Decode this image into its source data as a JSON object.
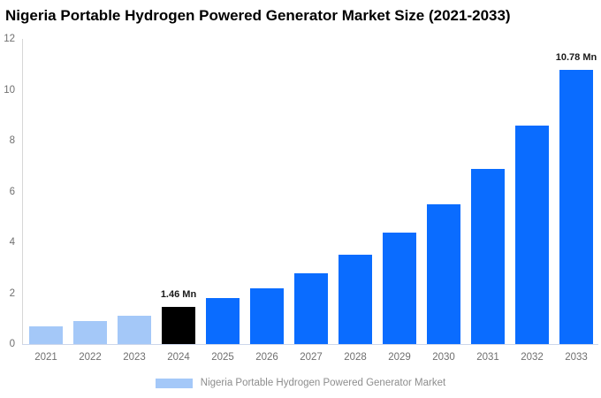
{
  "chart_data": {
    "type": "bar",
    "title": "Nigeria Portable Hydrogen Powered Generator Market Size (2021-2033)",
    "categories": [
      "2021",
      "2022",
      "2023",
      "2024",
      "2025",
      "2026",
      "2027",
      "2028",
      "2029",
      "2030",
      "2031",
      "2032",
      "2033"
    ],
    "values": [
      0.7,
      0.9,
      1.1,
      1.46,
      1.8,
      2.2,
      2.8,
      3.5,
      4.4,
      5.5,
      6.9,
      8.6,
      10.78
    ],
    "unit": "Mn",
    "xlabel": "",
    "ylabel": "",
    "ylim": [
      0,
      12
    ],
    "yticks": [
      0,
      2,
      4,
      6,
      8,
      10,
      12
    ],
    "grid": false,
    "legend_position": "bottom",
    "annotations": [
      {
        "index": 3,
        "text": "1.46 Mn"
      },
      {
        "index": 12,
        "text": "10.78 Mn"
      }
    ],
    "bar_colors": [
      "light",
      "light",
      "light",
      "black",
      "blue",
      "blue",
      "blue",
      "blue",
      "blue",
      "blue",
      "blue",
      "blue",
      "blue"
    ],
    "colors": {
      "light": "#a4c8f8",
      "blue": "#0a6cff",
      "black": "#000000",
      "axis_line": "#d6d6d6",
      "baseline": "#ccd6eb",
      "tick_text": "#6f6f6f",
      "legend_text": "#8d8d8d",
      "title_text": "#000000",
      "annotation_text": "#1a1a1a"
    }
  },
  "legend": {
    "label": "Nigeria Portable Hydrogen Powered Generator Market"
  }
}
